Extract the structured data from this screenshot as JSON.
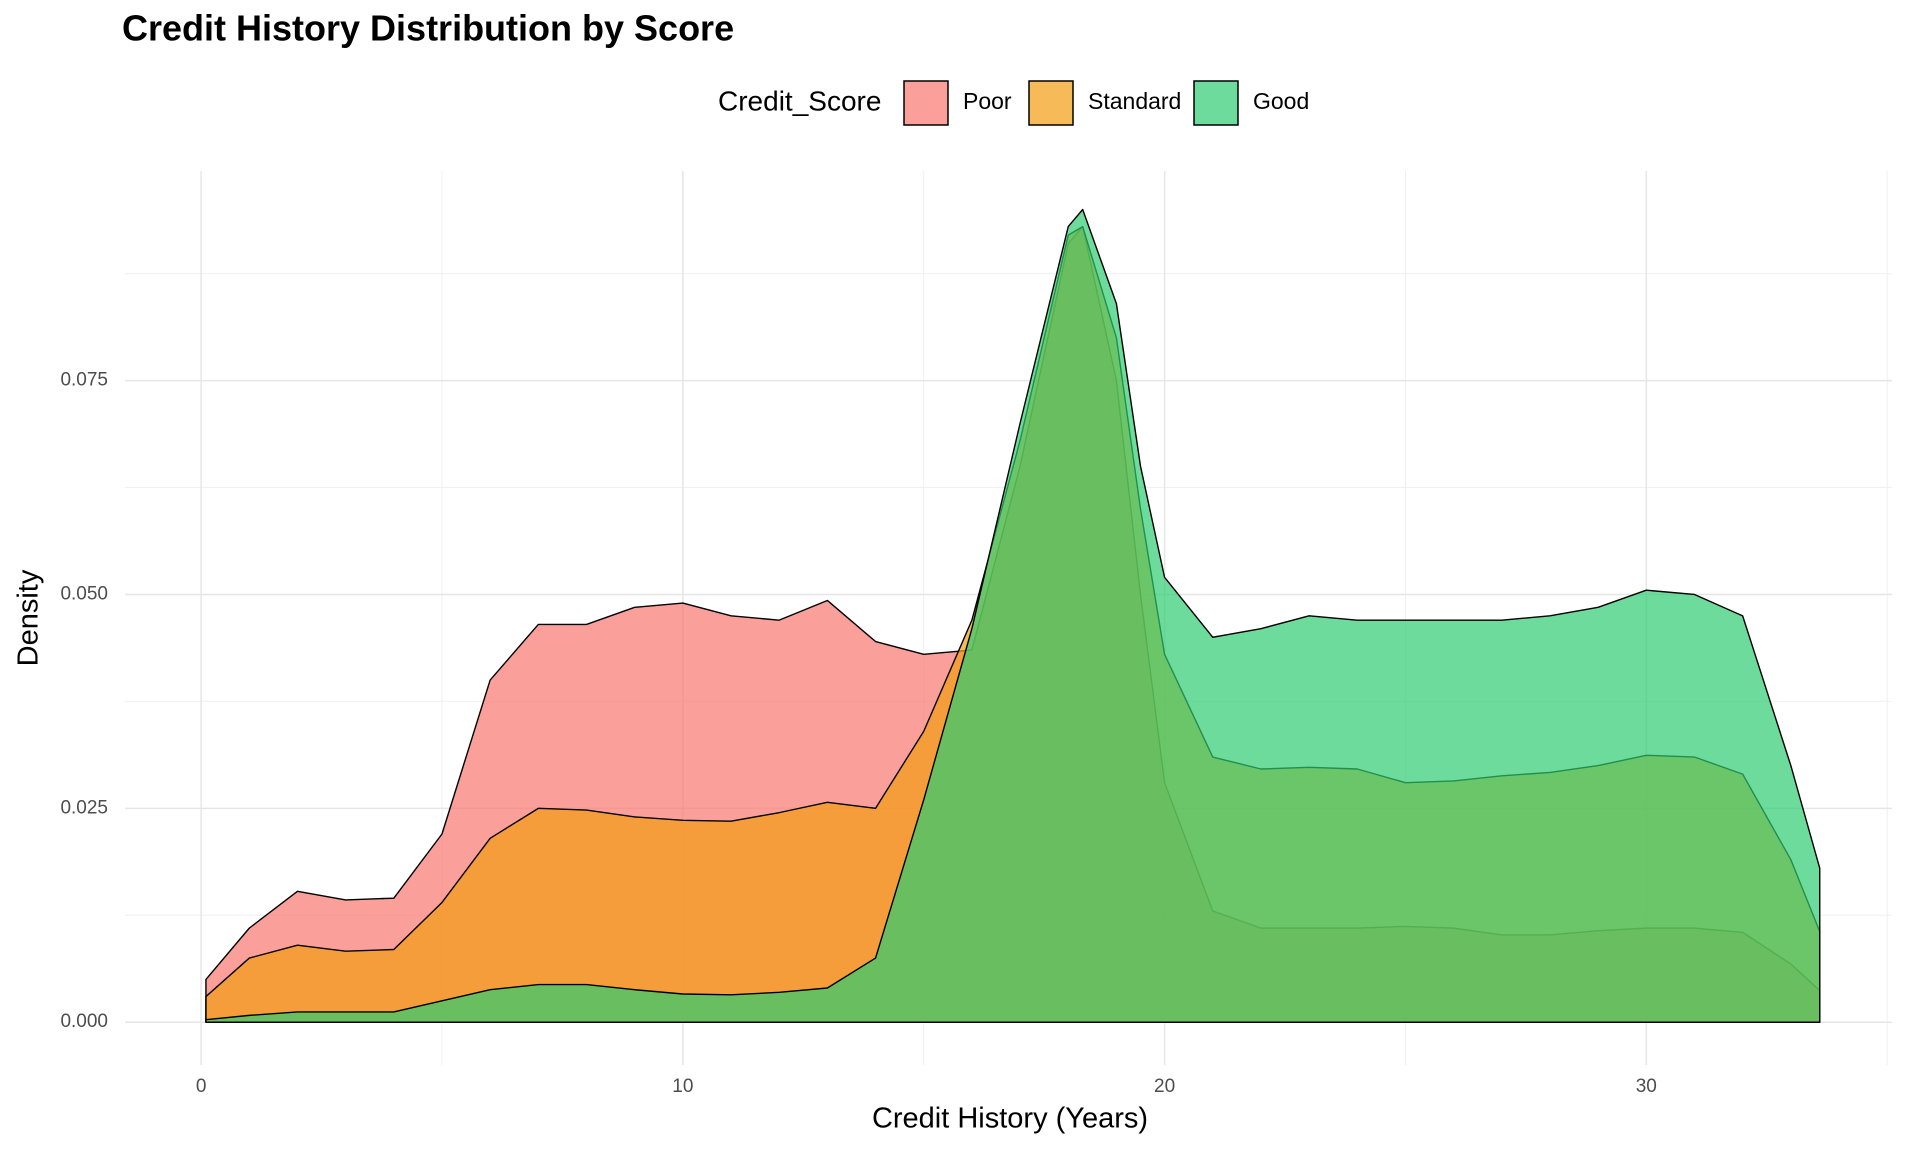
{
  "chart_data": {
    "type": "density",
    "title": "Credit History Distribution by Score",
    "legend_title": "Credit_Score",
    "legend_position": "top",
    "xlabel": "Credit History (Years)",
    "ylabel": "Density",
    "x": [
      0.1,
      1,
      2,
      3,
      4,
      5,
      6,
      7,
      8,
      9,
      10,
      11,
      12,
      13,
      14,
      15,
      16,
      17,
      18,
      18.3,
      19,
      19.5,
      20,
      21,
      22,
      23,
      24,
      25,
      26,
      27,
      28,
      29,
      30,
      31,
      32,
      33,
      33.6
    ],
    "series": [
      {
        "name": "Poor",
        "color": "#F8766D",
        "values": [
          0.005,
          0.011,
          0.0153,
          0.0143,
          0.0145,
          0.022,
          0.04,
          0.0465,
          0.0465,
          0.0485,
          0.049,
          0.0475,
          0.047,
          0.0493,
          0.0445,
          0.043,
          0.0435,
          0.065,
          0.091,
          0.093,
          0.075,
          0.05,
          0.028,
          0.013,
          0.011,
          0.011,
          0.011,
          0.0112,
          0.011,
          0.0102,
          0.0102,
          0.0107,
          0.011,
          0.011,
          0.0105,
          0.0068,
          0.0037
        ]
      },
      {
        "name": "Standard",
        "color": "#F39C12",
        "values": [
          0.003,
          0.0075,
          0.009,
          0.0083,
          0.0085,
          0.014,
          0.0215,
          0.025,
          0.0248,
          0.024,
          0.0236,
          0.0235,
          0.0245,
          0.0257,
          0.025,
          0.034,
          0.047,
          0.068,
          0.092,
          0.093,
          0.08,
          0.06,
          0.043,
          0.031,
          0.0296,
          0.0298,
          0.0296,
          0.028,
          0.0282,
          0.0288,
          0.0292,
          0.03,
          0.0312,
          0.031,
          0.029,
          0.019,
          0.0106
        ]
      },
      {
        "name": "Good",
        "color": "#2ECC71",
        "values": [
          0.0003,
          0.0008,
          0.0012,
          0.0012,
          0.0012,
          0.0025,
          0.0038,
          0.0044,
          0.0044,
          0.0038,
          0.0033,
          0.0032,
          0.0035,
          0.004,
          0.0075,
          0.026,
          0.046,
          0.07,
          0.093,
          0.095,
          0.084,
          0.065,
          0.052,
          0.045,
          0.046,
          0.0475,
          0.047,
          0.047,
          0.047,
          0.047,
          0.0475,
          0.0485,
          0.0505,
          0.05,
          0.0475,
          0.03,
          0.018
        ]
      }
    ],
    "xlim": [
      -1.58,
      35.1
    ],
    "ylim": [
      -0.005,
      0.0995
    ],
    "xticks": [
      0,
      10,
      20,
      30
    ],
    "yticks": [
      {
        "value": 0,
        "label": "0.000"
      },
      {
        "value": 0.025,
        "label": "0.025"
      },
      {
        "value": 0.05,
        "label": "0.050"
      },
      {
        "value": 0.075,
        "label": "0.075"
      }
    ],
    "xminor": [
      5,
      15,
      25,
      35
    ],
    "yminor": [
      0.0125,
      0.0375,
      0.0625,
      0.0875
    ],
    "grid": true,
    "fill_opacity": 0.7
  }
}
